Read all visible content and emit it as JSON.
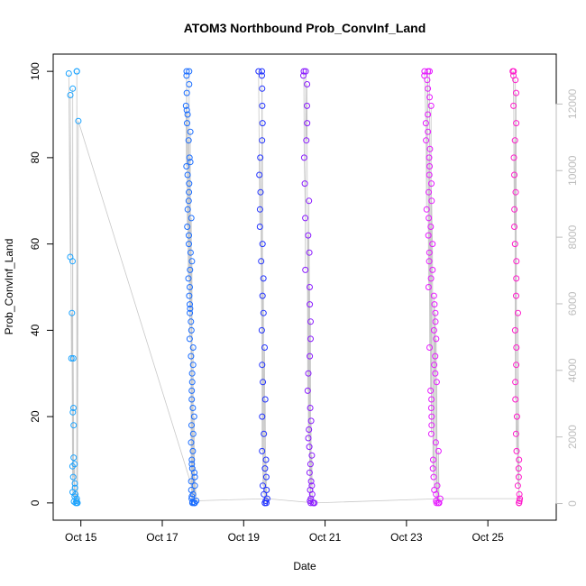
{
  "chart_data": {
    "type": "scatter",
    "title": "ATOM3 Northbound Prob_ConvInf_Land",
    "xlabel": "Date",
    "ylabel": "Prob_ConvInf_Land",
    "x_ticks": [
      "Oct 15",
      "Oct 17",
      "Oct 19",
      "Oct 21",
      "Oct 23",
      "Oct 25"
    ],
    "x_tick_days": [
      15,
      17,
      19,
      21,
      23,
      25
    ],
    "xlim": [
      14.32,
      26.68
    ],
    "ylim": [
      -4,
      104
    ],
    "y_ticks": [
      0,
      20,
      40,
      60,
      80,
      100
    ],
    "y2_ticks": [
      0,
      2000,
      4000,
      6000,
      8000,
      10000,
      12000
    ],
    "y2lim": [
      -500,
      13500
    ],
    "y2_color": "#bdbdbd",
    "line_color": "#c8c8c8",
    "series": [
      {
        "color": "#1aa3ff",
        "x_range": [
          14.7,
          14.95
        ],
        "values": [
          99.5,
          96,
          94.5,
          57,
          56,
          44,
          33.5,
          33.5,
          22,
          21,
          18,
          10.5,
          9,
          8.5,
          6,
          4.5,
          3.5,
          2.5,
          2,
          1.5,
          1,
          0.5,
          0.3,
          0,
          0,
          0,
          100,
          100,
          88.5
        ]
      },
      {
        "color": "#1a6dff",
        "x_range": [
          17.55,
          17.85
        ],
        "values": [
          100,
          100,
          99,
          97,
          95,
          92,
          91,
          90,
          88,
          86,
          84,
          80,
          79,
          78,
          76,
          74,
          72,
          70,
          68,
          66,
          64,
          62,
          60,
          58,
          56,
          54,
          52,
          50,
          48,
          46,
          45,
          44,
          42,
          40,
          38,
          36,
          34,
          32,
          30,
          28,
          26,
          24,
          22,
          20,
          18,
          16,
          14,
          12,
          10,
          9,
          8,
          7,
          6,
          5,
          4,
          3,
          2,
          1.5,
          1,
          0.5,
          0.2,
          0,
          0,
          0,
          0
        ]
      },
      {
        "color": "#2233ff",
        "x_range": [
          19.35,
          19.6
        ],
        "values": [
          100,
          100,
          99,
          96,
          92,
          88,
          84,
          80,
          76,
          72,
          68,
          64,
          60,
          56,
          52,
          48,
          44,
          40,
          36,
          32,
          28,
          24,
          20,
          16,
          12,
          10,
          8,
          6,
          4,
          3,
          2,
          1,
          0.5,
          0,
          0,
          0
        ]
      },
      {
        "color": "#8a1aff",
        "x_range": [
          20.45,
          20.75
        ],
        "values": [
          100,
          100,
          99,
          97,
          92,
          88,
          84,
          80,
          74,
          70,
          66,
          62,
          58,
          54,
          50,
          46,
          42,
          38,
          34,
          30,
          26,
          22,
          19,
          17,
          15,
          13,
          11,
          9,
          7,
          5,
          4,
          3,
          2,
          1,
          0.5,
          0,
          0,
          0,
          0,
          0
        ]
      },
      {
        "color": "#e61aff",
        "x_range": [
          23.4,
          23.85
        ],
        "values": [
          100,
          100,
          100,
          99,
          98,
          96,
          94,
          92,
          90,
          88,
          86,
          84,
          82,
          80,
          78,
          76,
          74,
          72,
          70,
          68,
          66,
          64,
          62,
          60,
          58,
          56,
          54,
          52,
          50,
          48,
          46,
          44,
          42,
          40,
          38,
          36,
          34,
          32,
          30,
          28,
          26,
          24,
          22,
          20,
          18,
          16,
          14,
          12,
          10,
          8,
          6,
          4,
          3,
          2,
          1,
          0.5,
          0,
          0,
          0
        ]
      },
      {
        "color": "#ff1acb",
        "x_range": [
          25.6,
          25.8
        ],
        "values": [
          100,
          100,
          99,
          98,
          95,
          92,
          88,
          84,
          80,
          76,
          72,
          68,
          64,
          60,
          56,
          52,
          48,
          44,
          40,
          36,
          32,
          28,
          24,
          20,
          16,
          12,
          10,
          8,
          6,
          4,
          2,
          1,
          0.5,
          0,
          0
        ]
      }
    ]
  }
}
